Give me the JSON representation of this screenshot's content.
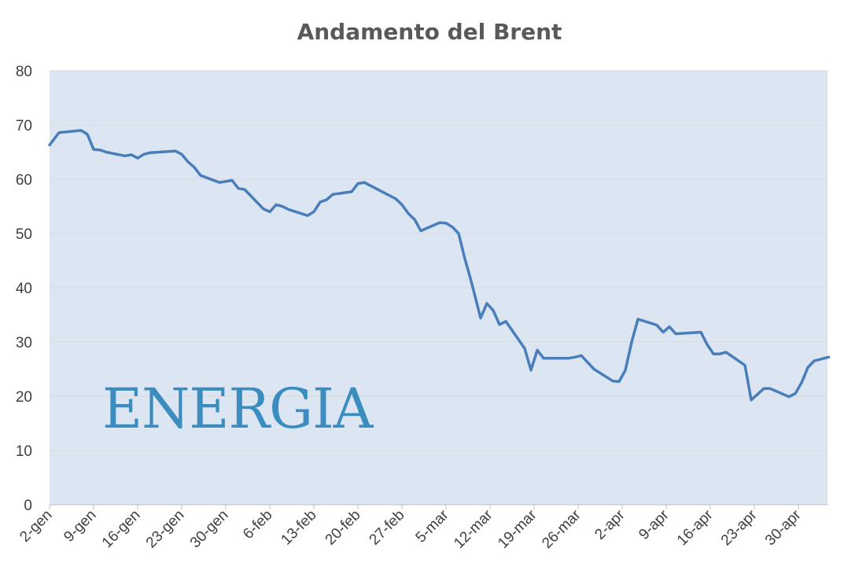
{
  "chart_data": {
    "type": "line",
    "title": "Andamento del Brent",
    "xlabel": "",
    "ylabel": "",
    "ylim": [
      0,
      80
    ],
    "yticks": [
      0,
      10,
      20,
      30,
      40,
      50,
      60,
      70,
      80
    ],
    "grid": true,
    "x_unit": "days since 2-gen",
    "xlim": [
      0,
      124
    ],
    "xticks": [
      {
        "day": 0,
        "label": "2-gen"
      },
      {
        "day": 7,
        "label": "9-gen"
      },
      {
        "day": 14,
        "label": "16-gen"
      },
      {
        "day": 21,
        "label": "23-gen"
      },
      {
        "day": 28,
        "label": "30-gen"
      },
      {
        "day": 35,
        "label": "6-feb"
      },
      {
        "day": 42,
        "label": "13-feb"
      },
      {
        "day": 49,
        "label": "20-feb"
      },
      {
        "day": 56,
        "label": "27-feb"
      },
      {
        "day": 63,
        "label": "5-mar"
      },
      {
        "day": 70,
        "label": "12-mar"
      },
      {
        "day": 77,
        "label": "19-mar"
      },
      {
        "day": 84,
        "label": "26-mar"
      },
      {
        "day": 91,
        "label": "2-apr"
      },
      {
        "day": 98,
        "label": "9-apr"
      },
      {
        "day": 105,
        "label": "16-apr"
      },
      {
        "day": 112,
        "label": "23-apr"
      },
      {
        "day": 119,
        "label": "30-apr"
      }
    ],
    "series": [
      {
        "name": "Brent",
        "color": "#4a7ebb",
        "points": [
          [
            0,
            66.3
          ],
          [
            1.5,
            68.6
          ],
          [
            5,
            69.0
          ],
          [
            6,
            68.3
          ],
          [
            7,
            65.5
          ],
          [
            8,
            65.4
          ],
          [
            9,
            65.0
          ],
          [
            12,
            64.3
          ],
          [
            13,
            64.5
          ],
          [
            14,
            63.9
          ],
          [
            15,
            64.6
          ],
          [
            16,
            64.9
          ],
          [
            20,
            65.2
          ],
          [
            21,
            64.6
          ],
          [
            22,
            63.2
          ],
          [
            23,
            62.2
          ],
          [
            24,
            60.7
          ],
          [
            27,
            59.4
          ],
          [
            28,
            59.6
          ],
          [
            29,
            59.8
          ],
          [
            30,
            58.3
          ],
          [
            31,
            58.1
          ],
          [
            34,
            54.5
          ],
          [
            35,
            54.0
          ],
          [
            36,
            55.3
          ],
          [
            37,
            55.0
          ],
          [
            38,
            54.4
          ],
          [
            41,
            53.3
          ],
          [
            42,
            54.0
          ],
          [
            43,
            55.8
          ],
          [
            44,
            56.2
          ],
          [
            45,
            57.2
          ],
          [
            48,
            57.7
          ],
          [
            49,
            59.2
          ],
          [
            50,
            59.4
          ],
          [
            55,
            56.4
          ],
          [
            56,
            55.3
          ],
          [
            57,
            53.7
          ],
          [
            58,
            52.6
          ],
          [
            59,
            50.5
          ],
          [
            62,
            52.0
          ],
          [
            63,
            51.9
          ],
          [
            64,
            51.2
          ],
          [
            65,
            50.0
          ],
          [
            66,
            45.3
          ],
          [
            67,
            41.2
          ],
          [
            68.5,
            34.4
          ],
          [
            69.5,
            37.1
          ],
          [
            70.5,
            35.8
          ],
          [
            71.5,
            33.2
          ],
          [
            72.5,
            33.8
          ],
          [
            75.5,
            28.8
          ],
          [
            76.5,
            24.8
          ],
          [
            77.5,
            28.5
          ],
          [
            78.5,
            27.0
          ],
          [
            82.5,
            27.0
          ],
          [
            83.5,
            27.2
          ],
          [
            84.5,
            27.5
          ],
          [
            86.5,
            25.0
          ],
          [
            89.5,
            22.8
          ],
          [
            90.5,
            22.7
          ],
          [
            91.5,
            24.8
          ],
          [
            92.5,
            30.0
          ],
          [
            93.5,
            34.2
          ],
          [
            96.5,
            33.1
          ],
          [
            97.5,
            31.8
          ],
          [
            98.5,
            32.8
          ],
          [
            99.5,
            31.5
          ],
          [
            103.5,
            31.8
          ],
          [
            104.5,
            29.5
          ],
          [
            105.5,
            27.8
          ],
          [
            106.5,
            27.8
          ],
          [
            107.5,
            28.1
          ],
          [
            110.5,
            25.7
          ],
          [
            111.5,
            19.3
          ],
          [
            113.5,
            21.4
          ],
          [
            114.5,
            21.4
          ],
          [
            117.5,
            19.9
          ],
          [
            118.5,
            20.5
          ],
          [
            119.5,
            22.5
          ],
          [
            120.5,
            25.3
          ],
          [
            121.5,
            26.5
          ],
          [
            123.8,
            27.2
          ]
        ]
      }
    ],
    "legend": "none",
    "plot_background": "#dce6f2"
  },
  "watermark": "ENERGIA"
}
